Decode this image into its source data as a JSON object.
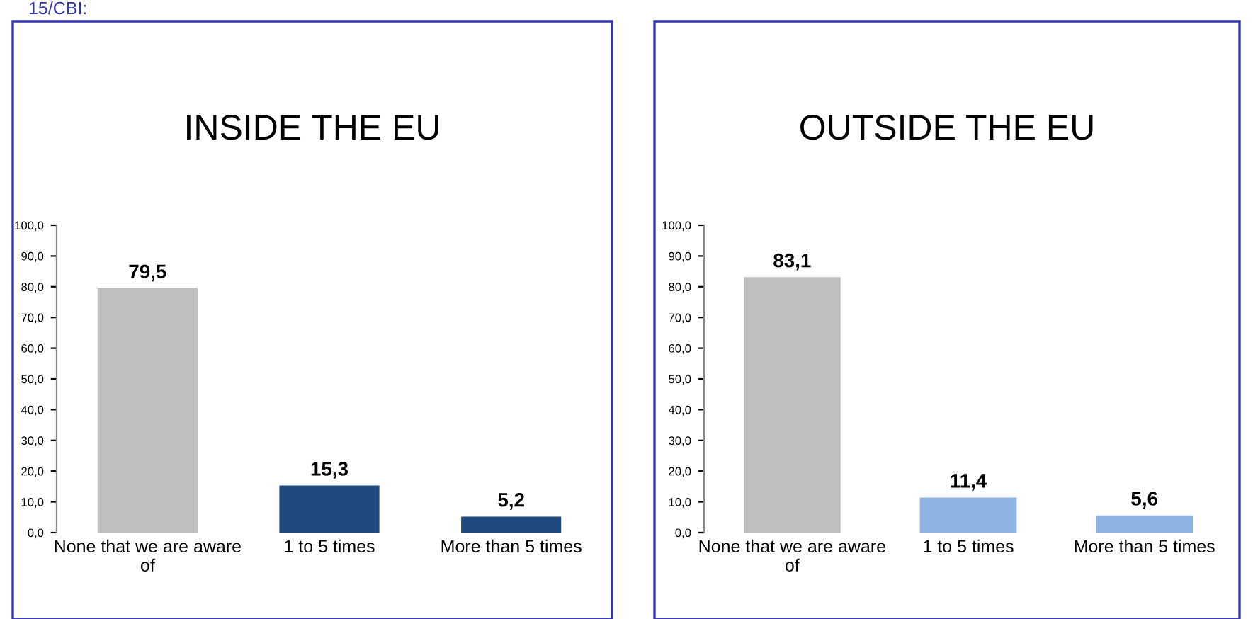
{
  "chart_data": [
    {
      "type": "bar",
      "title": "INSIDE THE EU",
      "annotations": [
        "15/CBI:"
      ],
      "categories": [
        "None that we are aware of",
        "1 to 5 times",
        "More than 5 times"
      ],
      "values": [
        79.5,
        15.3,
        5.2
      ],
      "colors": [
        "#bfbfbf",
        "#1f497d",
        "#1f497d"
      ],
      "value_labels": [
        "79,5",
        "15,3",
        "5,2"
      ],
      "ylim": [
        0,
        100
      ],
      "yticks": [
        {
          "value": 0,
          "label": "0,0"
        },
        {
          "value": 10,
          "label": "10,0"
        },
        {
          "value": 20,
          "label": "20,0"
        },
        {
          "value": 30,
          "label": "30,0"
        },
        {
          "value": 40,
          "label": "40,0"
        },
        {
          "value": 50,
          "label": "50,0"
        },
        {
          "value": 60,
          "label": "60,0"
        },
        {
          "value": 70,
          "label": "70,0"
        },
        {
          "value": 80,
          "label": "80,0"
        },
        {
          "value": 90,
          "label": "90,0"
        },
        {
          "value": 100,
          "label": "100,0"
        }
      ],
      "grid": false,
      "legend": false
    },
    {
      "type": "bar",
      "title": "OUTSIDE THE EU",
      "categories": [
        "None that we are aware of",
        "1 to 5 times",
        "More than 5 times"
      ],
      "values": [
        83.1,
        11.4,
        5.6
      ],
      "colors": [
        "#bfbfbf",
        "#8db3e2",
        "#8db3e2"
      ],
      "value_labels": [
        "83,1",
        "11,4",
        "5,6"
      ],
      "ylim": [
        0,
        100
      ],
      "yticks": [
        {
          "value": 0,
          "label": "0,0"
        },
        {
          "value": 10,
          "label": "10,0"
        },
        {
          "value": 20,
          "label": "20,0"
        },
        {
          "value": 30,
          "label": "30,0"
        },
        {
          "value": 40,
          "label": "40,0"
        },
        {
          "value": 50,
          "label": "50,0"
        },
        {
          "value": 60,
          "label": "60,0"
        },
        {
          "value": 70,
          "label": "70,0"
        },
        {
          "value": 80,
          "label": "80,0"
        },
        {
          "value": 90,
          "label": "90,0"
        },
        {
          "value": 100,
          "label": "100,0"
        }
      ],
      "grid": false,
      "legend": false
    }
  ]
}
